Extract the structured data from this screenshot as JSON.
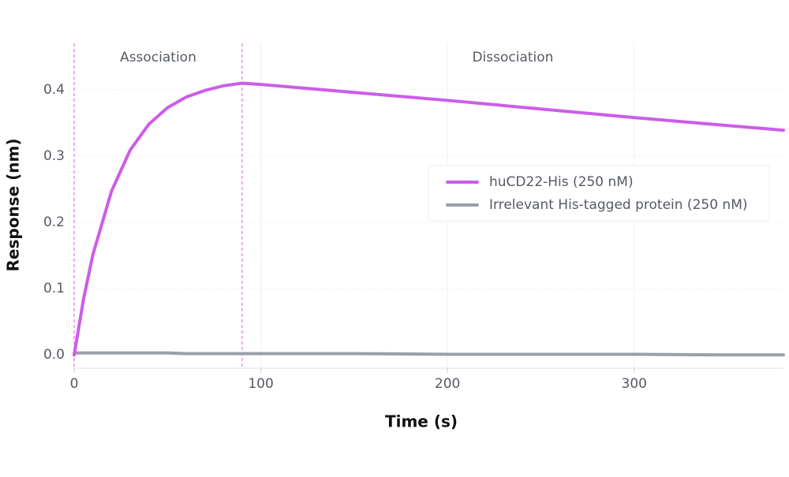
{
  "chart_data": {
    "type": "line",
    "xlabel": "Time (s)",
    "ylabel": "Response (nm)",
    "x": [
      0,
      5,
      10,
      20,
      30,
      40,
      50,
      60,
      70,
      80,
      90,
      100,
      150,
      200,
      250,
      300,
      350,
      380
    ],
    "series": [
      {
        "name": "huCD22-His (250 nM)",
        "color": "#cc5de8",
        "values": [
          0,
          0.084,
          0.151,
          0.247,
          0.309,
          0.348,
          0.373,
          0.389,
          0.399,
          0.406,
          0.41,
          0.408,
          0.396,
          0.384,
          0.371,
          0.358,
          0.346,
          0.339
        ]
      },
      {
        "name": "Irrelevant His-tagged protein (250 nM)",
        "color": "#9aa0a8",
        "values": [
          0.003,
          0.003,
          0.003,
          0.003,
          0.003,
          0.003,
          0.003,
          0.002,
          0.002,
          0.002,
          0.002,
          0.002,
          0.002,
          0.001,
          0.001,
          0.001,
          0.0,
          0.0
        ]
      }
    ],
    "phases": [
      {
        "label": "Association",
        "start": 0,
        "end": 90
      },
      {
        "label": "Dissociation",
        "start": 90,
        "end": 380
      }
    ],
    "xlim": [
      0,
      380
    ],
    "ylim": [
      -0.02,
      0.47
    ],
    "xticks": [
      0,
      100,
      200,
      300
    ],
    "yticks": [
      {
        "value": 0,
        "label": "0.0"
      },
      0.1,
      0.2,
      0.3,
      0.4
    ],
    "grid": true,
    "legend": "right"
  }
}
